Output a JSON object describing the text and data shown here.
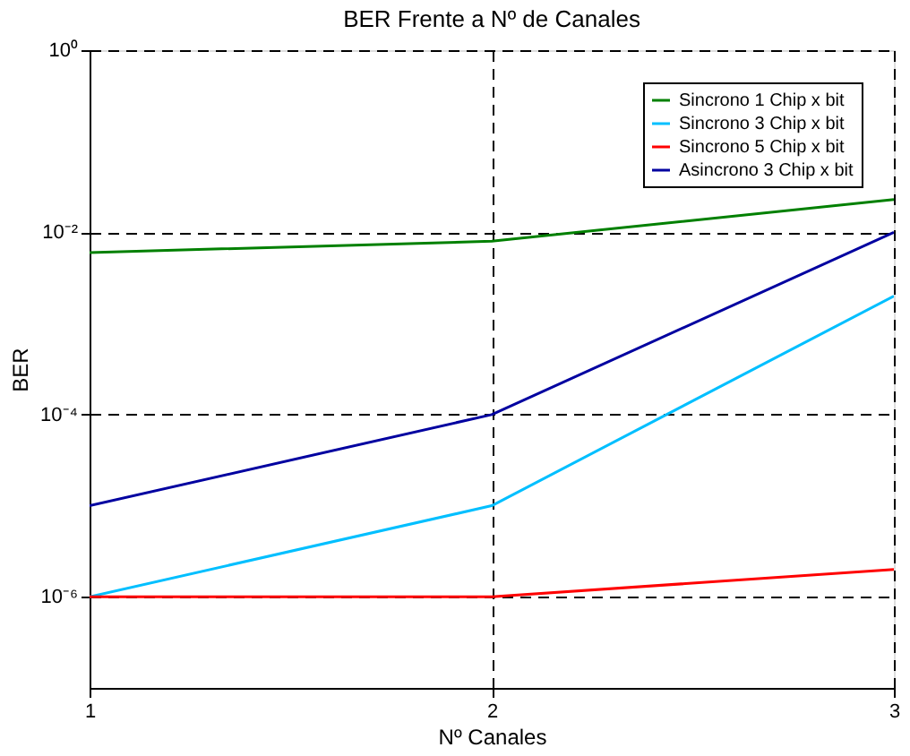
{
  "chart_data": {
    "type": "line",
    "title": "BER Frente a Nº de Canales",
    "xlabel": "Nº Canales",
    "ylabel": "BER",
    "x": [
      1,
      2,
      3
    ],
    "log": "y",
    "xlim": [
      1,
      3
    ],
    "xticks": [
      1,
      2,
      3
    ],
    "ylim": [
      1e-07,
      1
    ],
    "yticks": [
      {
        "value": 1e-06,
        "label": "10⁻⁶"
      },
      {
        "value": 0.0001,
        "label": "10⁻⁴"
      },
      {
        "value": 0.01,
        "label": "10⁻²"
      },
      {
        "value": 1,
        "label": "10⁰"
      }
    ],
    "grid": true,
    "legend": "top right",
    "marker": "none",
    "line_style": "solid",
    "series": [
      {
        "name": "Sincrono 1 Chip x bit",
        "color": "#008000",
        "values": [
          0.006,
          0.008,
          0.023
        ]
      },
      {
        "name": "Sincrono 3 Chip x bit",
        "color": "#00bfff",
        "values": [
          1e-06,
          1e-05,
          0.002
        ]
      },
      {
        "name": "Sincrono 5 Chip x bit",
        "color": "#ff0000",
        "values": [
          1e-06,
          1e-06,
          2e-06
        ]
      },
      {
        "name": "Asincrono 3 Chip x bit",
        "color": "#0000a0",
        "values": [
          1e-05,
          0.0001,
          0.01
        ]
      }
    ]
  }
}
